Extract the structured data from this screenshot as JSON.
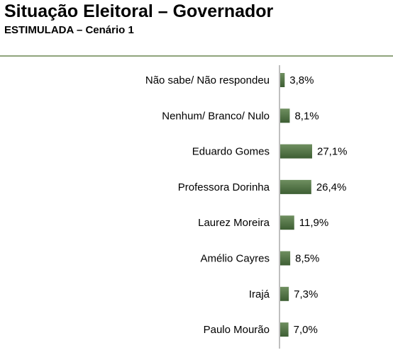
{
  "header": {
    "title": "Situação Eleitoral – Governador",
    "subtitle": "ESTIMULADA – Cenário 1"
  },
  "colors": {
    "bar_dark": "#3d5e33",
    "bar_light": "#6f8f60",
    "axis": "#7f7f7f",
    "rule": "#8fa47c"
  },
  "chart_data": {
    "type": "bar",
    "orientation": "horizontal",
    "title": "Situação Eleitoral – Governador",
    "subtitle": "ESTIMULADA – Cenário 1",
    "categories": [
      "Não sabe/ Não respondeu",
      "Nenhum/ Branco/ Nulo",
      "Eduardo Gomes",
      "Professora Dorinha",
      "Laurez Moreira",
      "Amélio Cayres",
      "Irajá",
      "Paulo Mourão"
    ],
    "values": [
      3.8,
      8.1,
      27.1,
      26.4,
      11.9,
      8.5,
      7.3,
      7.0
    ],
    "value_labels": [
      "3,8%",
      "8,1%",
      "27,1%",
      "26,4%",
      "11,9%",
      "8,5%",
      "7,3%",
      "7,0%"
    ],
    "xlim": [
      0,
      100
    ],
    "grid": false,
    "legend": "none"
  }
}
